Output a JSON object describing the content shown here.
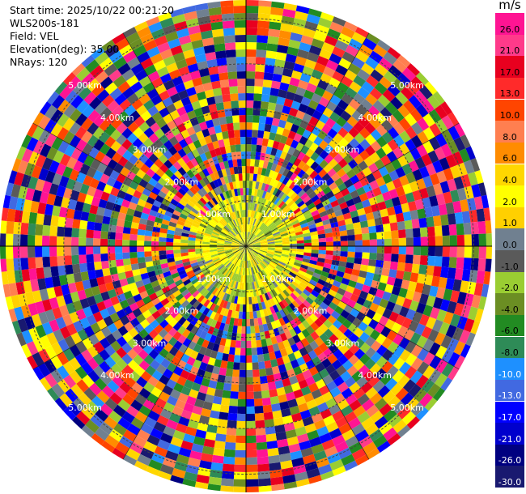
{
  "info": {
    "start_time": "Start time: 2025/10/22 00:21:20",
    "instrument": "WLS200s-181",
    "field": "Field: VEL",
    "elevation": "Elevation(deg): 35.00",
    "nrays": "NRays: 120"
  },
  "chart_data": {
    "type": "heatmap",
    "projection": "polar",
    "n_rays": 120,
    "max_range_km": 5.4,
    "range_ring_labels": [
      "1.00km",
      "2.00km",
      "3.00km",
      "4.00km",
      "5.00km"
    ],
    "ring_label_bearings_deg": [
      45,
      135,
      225,
      315
    ],
    "colorbar": {
      "unit": "m/s",
      "ticks": [
        "26.0",
        "21.0",
        "17.0",
        "13.0",
        "10.0",
        "8.0",
        "6.0",
        "4.0",
        "2.0",
        "1.0",
        "0.0",
        "-1.0",
        "-2.0",
        "-4.0",
        "-6.0",
        "-8.0",
        "-10.0",
        "-13.0",
        "-17.0",
        "-21.0",
        "-26.0",
        "-30.0"
      ],
      "colors": [
        "#ff1493",
        "#ff3a8a",
        "#e8001f",
        "#ff2a2a",
        "#ff4500",
        "#ff7f50",
        "#ff8c00",
        "#ffd700",
        "#ffff00",
        "#ffd000",
        "#708090",
        "#5a5a5a",
        "#9acd32",
        "#6b8e23",
        "#228b22",
        "#2e8b57",
        "#1e90ff",
        "#4169e1",
        "#0000ff",
        "#0000cd",
        "#000080",
        "#191970"
      ],
      "label_colors": [
        "#000",
        "#000",
        "#000",
        "#000",
        "#000",
        "#000",
        "#000",
        "#000",
        "#000",
        "#000",
        "#000",
        "#000",
        "#000",
        "#000",
        "#000",
        "#000",
        "#fff",
        "#fff",
        "#fff",
        "#fff",
        "#fff",
        "#fff"
      ]
    }
  }
}
